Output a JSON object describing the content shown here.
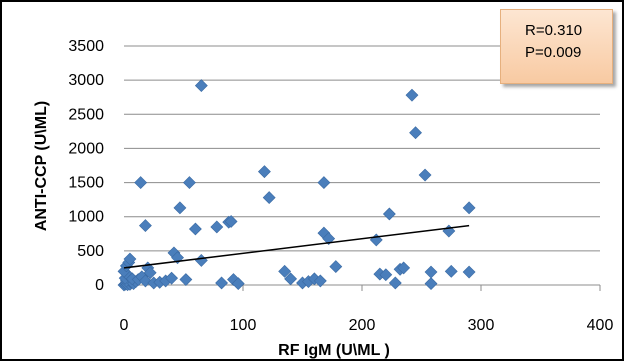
{
  "chart_data": {
    "type": "scatter",
    "title": "",
    "xlabel": "RF IgM (U\\ML )",
    "ylabel": "ANTI-CCP (U\\ML)",
    "xlim": [
      0,
      400
    ],
    "ylim": [
      0,
      3500
    ],
    "x_ticks": [
      0,
      100,
      200,
      300,
      400
    ],
    "y_ticks": [
      0,
      500,
      1000,
      1500,
      2000,
      2500,
      3000,
      3500
    ],
    "grid": "horizontal",
    "legend": "none",
    "marker_color": "#4a7ebb",
    "trendline": {
      "x": [
        0,
        290
      ],
      "y": [
        250,
        870
      ],
      "color": "#000000"
    },
    "annotation": {
      "lines": [
        "R=0.310",
        "P=0.009"
      ]
    },
    "points": [
      [
        0,
        0
      ],
      [
        1,
        10
      ],
      [
        2,
        20
      ],
      [
        3,
        5
      ],
      [
        4,
        30
      ],
      [
        5,
        10
      ],
      [
        6,
        40
      ],
      [
        2,
        60
      ],
      [
        1,
        100
      ],
      [
        8,
        20
      ],
      [
        10,
        50
      ],
      [
        3,
        150
      ],
      [
        0,
        200
      ],
      [
        2,
        280
      ],
      [
        4,
        330
      ],
      [
        5,
        380
      ],
      [
        7,
        90
      ],
      [
        12,
        80
      ],
      [
        15,
        120
      ],
      [
        18,
        60
      ],
      [
        20,
        250
      ],
      [
        22,
        180
      ],
      [
        25,
        30
      ],
      [
        30,
        40
      ],
      [
        35,
        60
      ],
      [
        40,
        100
      ],
      [
        42,
        470
      ],
      [
        45,
        400
      ],
      [
        47,
        1130
      ],
      [
        52,
        80
      ],
      [
        55,
        1500
      ],
      [
        60,
        820
      ],
      [
        65,
        2920
      ],
      [
        65,
        360
      ],
      [
        78,
        850
      ],
      [
        82,
        30
      ],
      [
        88,
        920
      ],
      [
        90,
        930
      ],
      [
        92,
        80
      ],
      [
        96,
        20
      ],
      [
        14,
        1500
      ],
      [
        18,
        870
      ],
      [
        118,
        1660
      ],
      [
        122,
        1280
      ],
      [
        135,
        200
      ],
      [
        140,
        90
      ],
      [
        150,
        30
      ],
      [
        155,
        50
      ],
      [
        160,
        90
      ],
      [
        165,
        60
      ],
      [
        168,
        1500
      ],
      [
        168,
        760
      ],
      [
        172,
        680
      ],
      [
        178,
        270
      ],
      [
        212,
        660
      ],
      [
        215,
        160
      ],
      [
        220,
        150
      ],
      [
        223,
        1040
      ],
      [
        228,
        30
      ],
      [
        232,
        230
      ],
      [
        235,
        250
      ],
      [
        242,
        2780
      ],
      [
        245,
        2230
      ],
      [
        253,
        1610
      ],
      [
        258,
        190
      ],
      [
        258,
        20
      ],
      [
        273,
        790
      ],
      [
        275,
        200
      ],
      [
        290,
        190
      ],
      [
        290,
        1130
      ]
    ]
  }
}
